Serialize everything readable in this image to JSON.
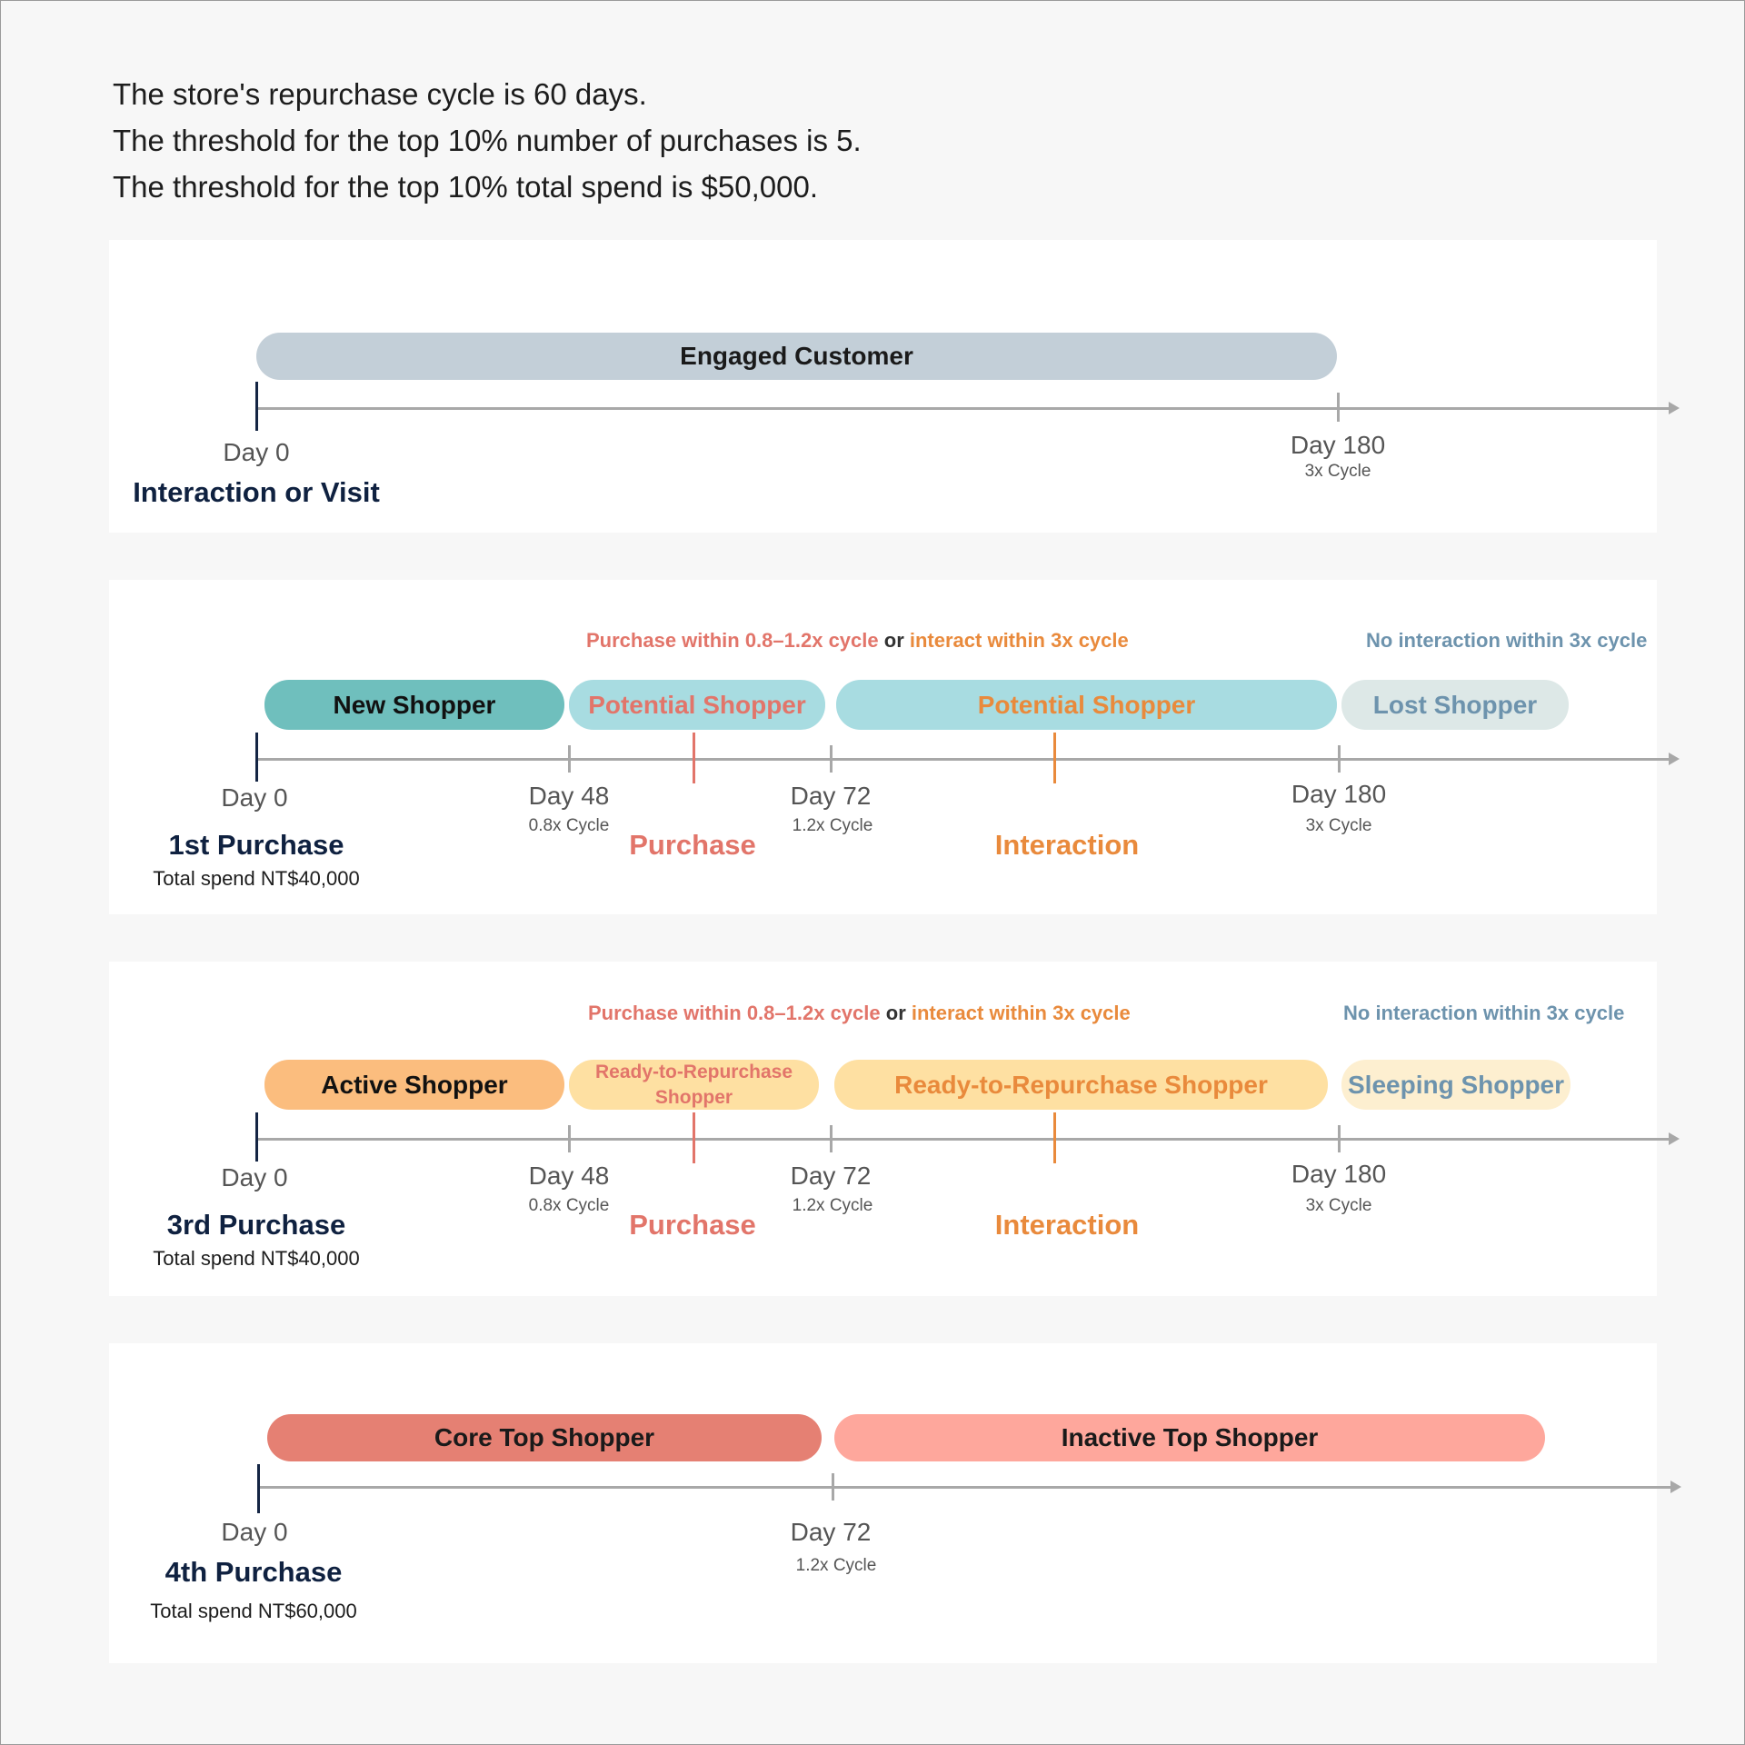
{
  "intro": {
    "line1": "The store's repurchase cycle is 60 days.",
    "line2": "The threshold for the top 10% number of purchases is 5.",
    "line3": "The threshold for the top 10% total spend is $50,000."
  },
  "colors": {
    "red_text": "#e2756a",
    "orange_text": "#e98a3c",
    "blue_text": "#6d93ad",
    "dark_navy": "#0f2140"
  },
  "panel1": {
    "segment": "Engaged Customer",
    "start_day": "Day 0",
    "end_day": "Day 180",
    "end_cycle": "3x Cycle",
    "event": "Interaction or Visit"
  },
  "panel2": {
    "cond_purchase": "Purchase within 0.8–1.2x cycle",
    "cond_or": "or",
    "cond_interact": "interact within 3x cycle",
    "cond_none": "No interaction within 3x cycle",
    "seg_new": "New Shopper",
    "seg_potential_1": "Potential Shopper",
    "seg_potential_2": "Potential Shopper",
    "seg_lost": "Lost Shopper",
    "day_0": "Day  0",
    "day_48": "Day 48",
    "cycle_48": "0.8x Cycle",
    "day_72": "Day 72",
    "cycle_72": "1.2x Cycle",
    "day_180": "Day 180",
    "cycle_180": "3x Cycle",
    "event": "1st Purchase",
    "spend": "Total spend NT$40,000",
    "mark_purchase": "Purchase",
    "mark_interaction": "Interaction"
  },
  "panel3": {
    "cond_purchase": "Purchase within 0.8–1.2x cycle",
    "cond_or": "or",
    "cond_interact": "interact within 3x cycle",
    "cond_none": "No interaction within 3x cycle",
    "seg_active": "Active Shopper",
    "seg_ready_1": "Ready-to-Repurchase Shopper",
    "seg_ready_2": "Ready-to-Repurchase Shopper",
    "seg_sleeping": "Sleeping Shopper",
    "day_0": "Day  0",
    "day_48": "Day 48",
    "cycle_48": "0.8x Cycle",
    "day_72": "Day 72",
    "cycle_72": "1.2x Cycle",
    "day_180": "Day 180",
    "cycle_180": "3x Cycle",
    "event": "3rd Purchase",
    "spend": "Total spend NT$40,000",
    "mark_purchase": "Purchase",
    "mark_interaction": "Interaction"
  },
  "panel4": {
    "seg_core": "Core Top Shopper",
    "seg_inactive": "Inactive Top Shopper",
    "day_0": "Day 0",
    "day_72": "Day 72",
    "cycle_72": "1.2x Cycle",
    "event": "4th Purchase",
    "spend": "Total spend NT$60,000"
  }
}
